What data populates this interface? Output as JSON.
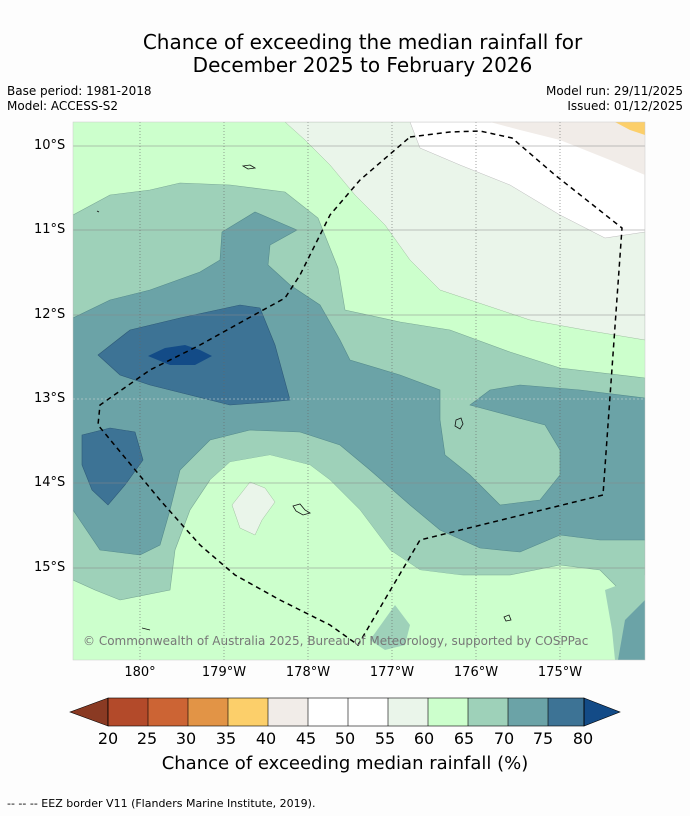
{
  "title": {
    "line1": "Chance of exceeding the median rainfall for",
    "line2": "December 2025 to February 2026"
  },
  "meta": {
    "base_period": "Base period: 1981-2018",
    "model": "Model: ACCESS-S2",
    "model_run": "Model run: 29/11/2025",
    "issued": "Issued: 01/12/2025"
  },
  "map": {
    "latitude_labels": [
      "10°S",
      "11°S",
      "12°S",
      "13°S",
      "14°S",
      "15°S"
    ],
    "longitude_labels": [
      "180°",
      "179°W",
      "178°W",
      "177°W",
      "176°W",
      "175°W"
    ],
    "copyright": "© Commonwealth of Australia 2025, Bureau of Meteorology, supported by COSPPac"
  },
  "colorbar": {
    "ticks": [
      "20",
      "25",
      "30",
      "35",
      "40",
      "45",
      "50",
      "55",
      "60",
      "65",
      "70",
      "75",
      "80"
    ],
    "colors": {
      "below_20": "#8a3a23",
      "20_25": "#b34a2a",
      "25_30": "#cc6434",
      "30_35": "#e29446",
      "35_40": "#fccf6a",
      "40_45": "#f1ece8",
      "45_50": "#ffffff",
      "50_55": "#ffffff",
      "55_60": "#eaf5ea",
      "60_65": "#ccffcc",
      "65_70": "#9ed1b9",
      "70_75": "#6ba3a7",
      "75_80": "#3d7395",
      "above_80": "#134b87"
    },
    "title": "Chance of exceeding median rainfall (%)"
  },
  "footer": "--  --  -- EEZ border V11 (Flanders Marine Institute, 2019)."
}
